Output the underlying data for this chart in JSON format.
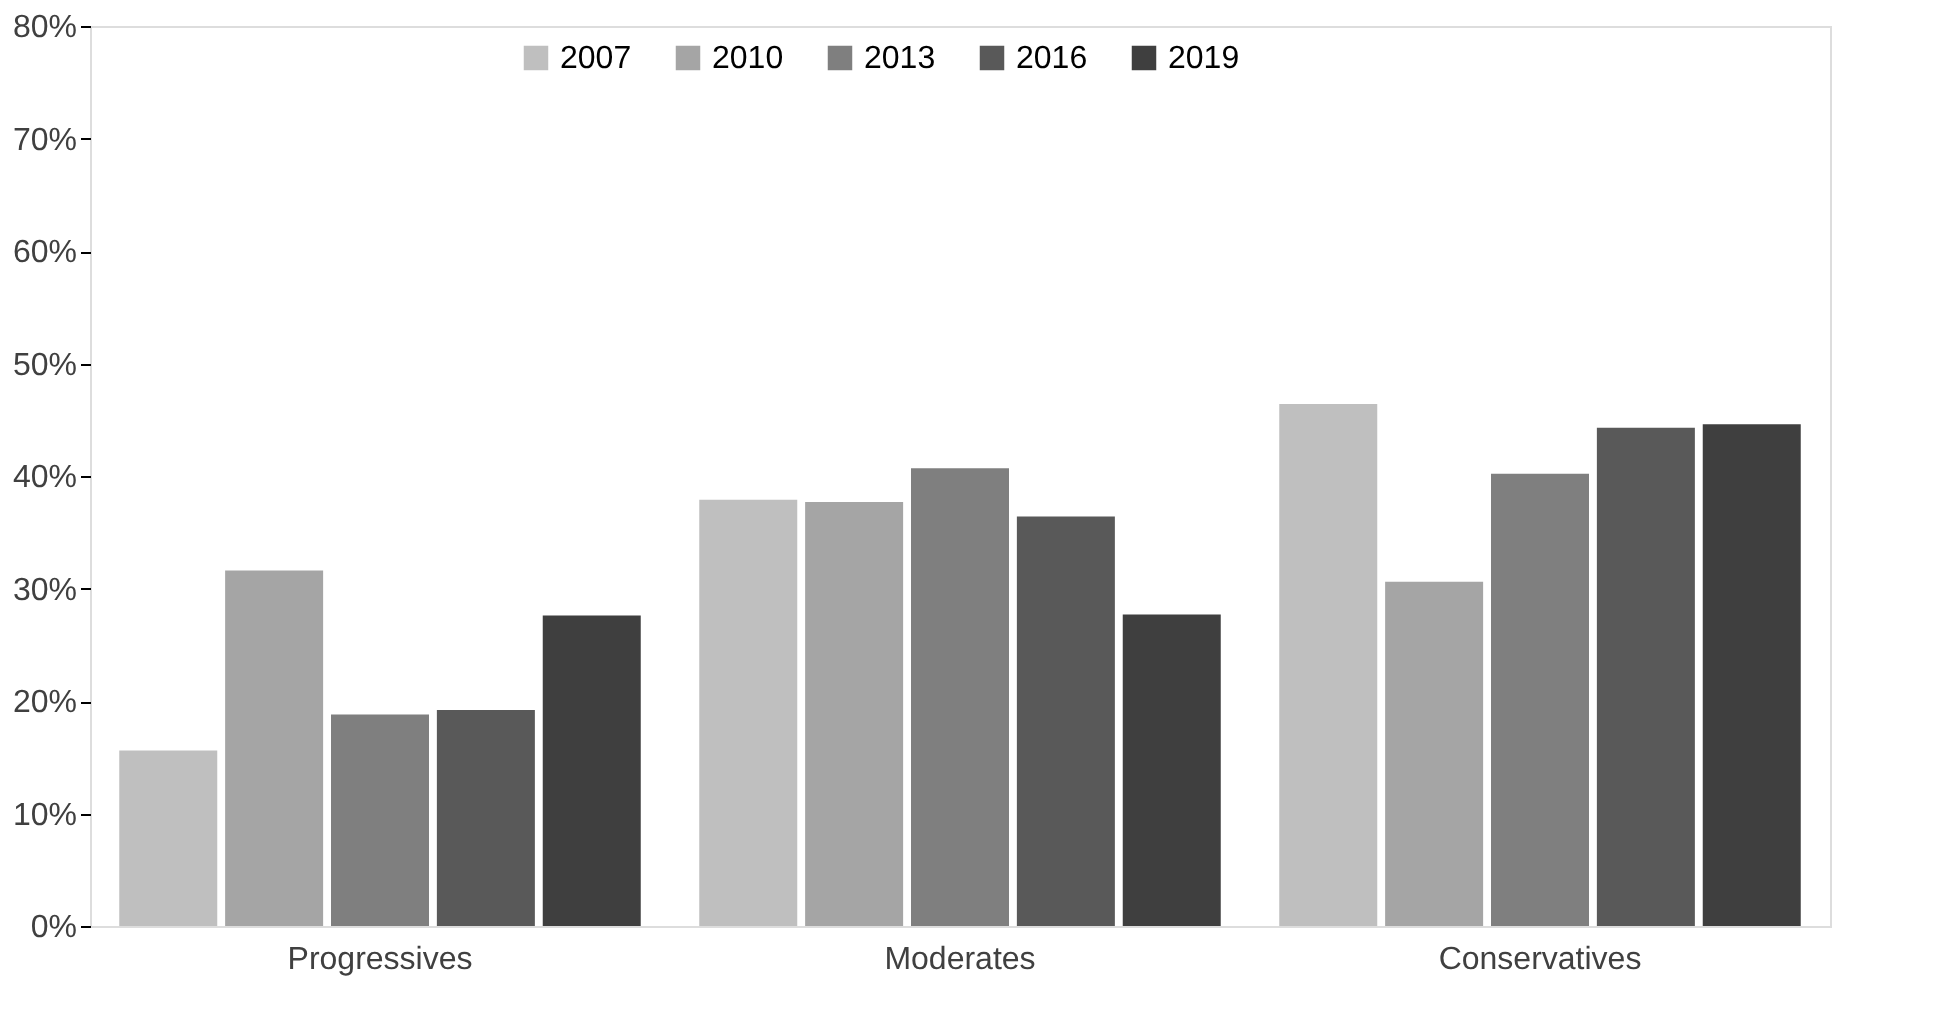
{
  "chart_data": {
    "type": "bar",
    "categories": [
      "Progressives",
      "Moderates",
      "Conservatives"
    ],
    "series": [
      {
        "name": "2007",
        "color": "#bfbfbf",
        "values": [
          15.6,
          37.9,
          46.4
        ]
      },
      {
        "name": "2010",
        "color": "#a5a5a5",
        "values": [
          31.6,
          37.7,
          30.6
        ]
      },
      {
        "name": "2013",
        "color": "#7f7f7f",
        "values": [
          18.8,
          40.7,
          40.2
        ]
      },
      {
        "name": "2016",
        "color": "#595959",
        "values": [
          19.2,
          36.4,
          44.3
        ]
      },
      {
        "name": "2019",
        "color": "#3f3f3f",
        "values": [
          27.6,
          27.7,
          44.6
        ]
      }
    ],
    "ylim": [
      0,
      80
    ],
    "yticks": [
      {
        "value": 0,
        "label": "0%"
      },
      {
        "value": 10,
        "label": "10%"
      },
      {
        "value": 20,
        "label": "20%"
      },
      {
        "value": 30,
        "label": "30%"
      },
      {
        "value": 40,
        "label": "40%"
      },
      {
        "value": 50,
        "label": "50%"
      },
      {
        "value": 60,
        "label": "60%"
      },
      {
        "value": 70,
        "label": "70%"
      },
      {
        "value": 80,
        "label": "80%"
      }
    ],
    "grid": false,
    "legend": "top"
  }
}
